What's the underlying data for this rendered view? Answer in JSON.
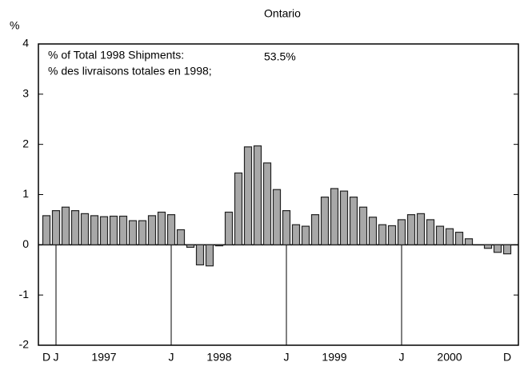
{
  "chart_data": {
    "type": "bar",
    "title": "Ontario",
    "y_label": "%",
    "annotations": [
      "% of Total 1998 Shipments:",
      "% des livraisons totales en 1998;",
      "53.5%"
    ],
    "categories": [
      "D",
      "J",
      null,
      null,
      null,
      null,
      "1997",
      null,
      null,
      null,
      null,
      null,
      null,
      "J",
      null,
      null,
      null,
      null,
      "1998",
      null,
      null,
      null,
      null,
      null,
      null,
      "J",
      null,
      null,
      null,
      null,
      "1999",
      null,
      null,
      null,
      null,
      null,
      null,
      "J",
      null,
      null,
      null,
      null,
      "2000",
      null,
      null,
      null,
      null,
      null,
      "D"
    ],
    "values": [
      0.58,
      0.68,
      0.75,
      0.68,
      0.62,
      0.58,
      0.56,
      0.57,
      0.57,
      0.48,
      0.48,
      0.58,
      0.65,
      0.6,
      0.3,
      -0.05,
      -0.4,
      -0.42,
      -0.02,
      0.65,
      1.43,
      1.95,
      1.97,
      1.63,
      1.1,
      0.68,
      0.4,
      0.37,
      0.6,
      0.95,
      1.12,
      1.07,
      0.95,
      0.75,
      0.55,
      0.4,
      0.38,
      0.5,
      0.6,
      0.62,
      0.5,
      0.37,
      0.32,
      0.25,
      0.12,
      0,
      -0.07,
      -0.15,
      -0.18
    ],
    "color": "#a8a8a8",
    "ylim": [
      -2,
      4
    ],
    "yticks": [
      -2,
      -1,
      0,
      1,
      2,
      3,
      4
    ]
  }
}
